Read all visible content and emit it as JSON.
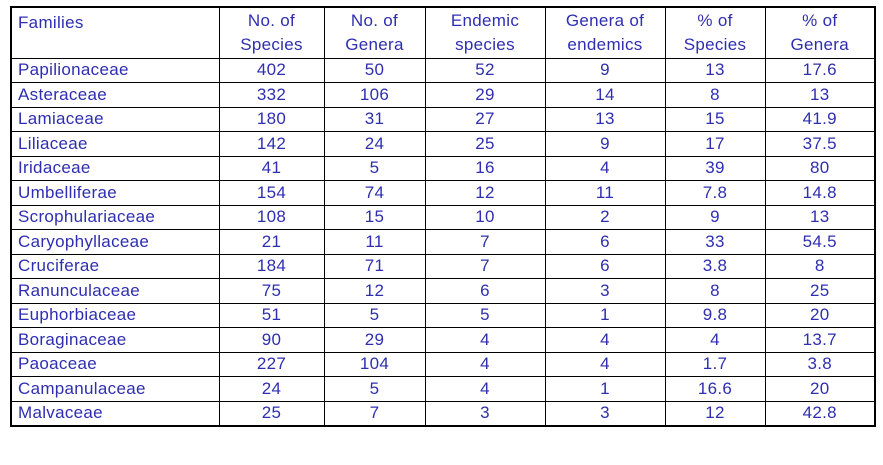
{
  "colors": {
    "text": "#2e2eb0",
    "border": "#000000",
    "background": "#ffffff"
  },
  "table": {
    "headers": [
      {
        "line1": "Families",
        "line2": ""
      },
      {
        "line1": "No. of",
        "line2": "Species"
      },
      {
        "line1": "No. of",
        "line2": "Genera"
      },
      {
        "line1": "Endemic",
        "line2": "species"
      },
      {
        "line1": "Genera of",
        "line2": "endemics"
      },
      {
        "line1": "% of",
        "line2": "Species"
      },
      {
        "line1": "% of",
        "line2": "Genera"
      }
    ],
    "rows": [
      [
        "Papilionaceae",
        "402",
        "50",
        "52",
        "9",
        "13",
        "17.6"
      ],
      [
        "Asteraceae",
        "332",
        "106",
        "29",
        "14",
        "8",
        "13"
      ],
      [
        "Lamiaceae",
        "180",
        "31",
        "27",
        "13",
        "15",
        "41.9"
      ],
      [
        "Liliaceae",
        "142",
        "24",
        "25",
        "9",
        "17",
        "37.5"
      ],
      [
        "Iridaceae",
        "41",
        "5",
        "16",
        "4",
        "39",
        "80"
      ],
      [
        "Umbelliferae",
        "154",
        "74",
        "12",
        "11",
        "7.8",
        "14.8"
      ],
      [
        "Scrophulariaceae",
        "108",
        "15",
        "10",
        "2",
        "9",
        "13"
      ],
      [
        "Caryophyllaceae",
        "21",
        "11",
        "7",
        "6",
        "33",
        "54.5"
      ],
      [
        "Cruciferae",
        "184",
        "71",
        "7",
        "6",
        "3.8",
        "8"
      ],
      [
        "Ranunculaceae",
        "75",
        "12",
        "6",
        "3",
        "8",
        "25"
      ],
      [
        "Euphorbiaceae",
        "51",
        "5",
        "5",
        "1",
        "9.8",
        "20"
      ],
      [
        "Boraginaceae",
        "90",
        "29",
        "4",
        "4",
        "4",
        "13.7"
      ],
      [
        "Paoaceae",
        "227",
        "104",
        "4",
        "4",
        "1.7",
        "3.8"
      ],
      [
        "Campanulaceae",
        "24",
        "5",
        "4",
        "1",
        "16.6",
        "20"
      ],
      [
        "Malvaceae",
        "25",
        "7",
        "3",
        "3",
        "12",
        "42.8"
      ]
    ]
  },
  "chart_data": {
    "type": "table",
    "columns": [
      "Families",
      "No. of Species",
      "No. of Genera",
      "Endemic species",
      "Genera of endemics",
      "% of Species",
      "% of Genera"
    ],
    "rows": [
      [
        "Papilionaceae",
        402,
        50,
        52,
        9,
        13,
        17.6
      ],
      [
        "Asteraceae",
        332,
        106,
        29,
        14,
        8,
        13
      ],
      [
        "Lamiaceae",
        180,
        31,
        27,
        13,
        15,
        41.9
      ],
      [
        "Liliaceae",
        142,
        24,
        25,
        9,
        17,
        37.5
      ],
      [
        "Iridaceae",
        41,
        5,
        16,
        4,
        39,
        80
      ],
      [
        "Umbelliferae",
        154,
        74,
        12,
        11,
        7.8,
        14.8
      ],
      [
        "Scrophulariaceae",
        108,
        15,
        10,
        2,
        9,
        13
      ],
      [
        "Caryophyllaceae",
        21,
        11,
        7,
        6,
        33,
        54.5
      ],
      [
        "Cruciferae",
        184,
        71,
        7,
        6,
        3.8,
        8
      ],
      [
        "Ranunculaceae",
        75,
        12,
        6,
        3,
        8,
        25
      ],
      [
        "Euphorbiaceae",
        51,
        5,
        5,
        1,
        9.8,
        20
      ],
      [
        "Boraginaceae",
        90,
        29,
        4,
        4,
        4,
        13.7
      ],
      [
        "Paoaceae",
        227,
        104,
        4,
        4,
        1.7,
        3.8
      ],
      [
        "Campanulaceae",
        24,
        5,
        4,
        1,
        16.6,
        20
      ],
      [
        "Malvaceae",
        25,
        7,
        3,
        3,
        12,
        42.8
      ]
    ]
  }
}
